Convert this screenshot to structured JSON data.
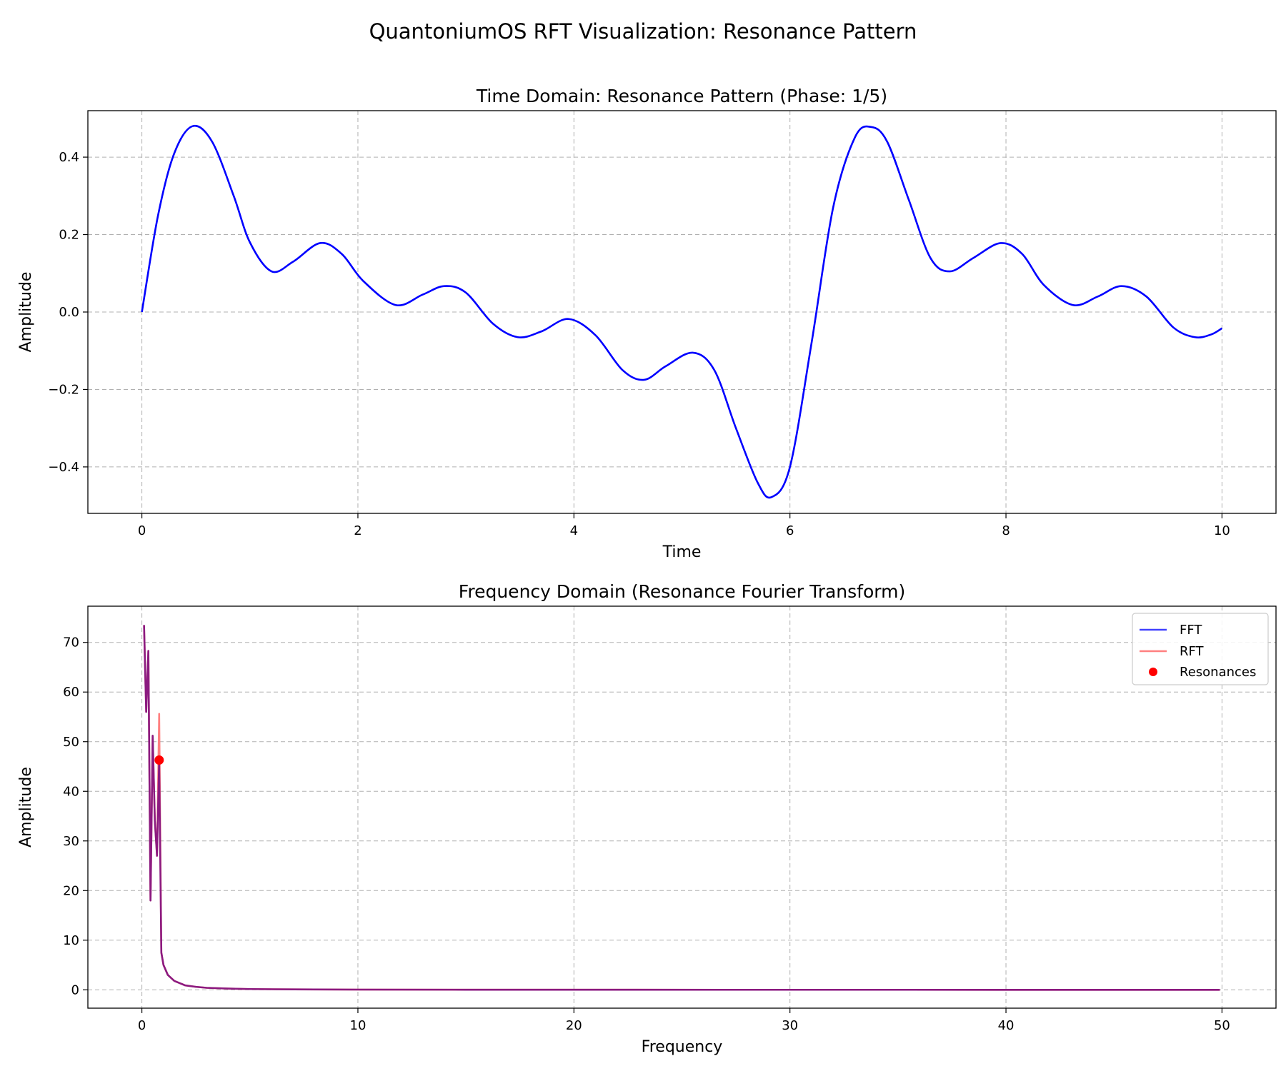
{
  "figure_title": "QuantoniumOS RFT Visualization: Resonance Pattern",
  "colors": {
    "time_line": "#0000ff",
    "fft_line": "#4040ff",
    "rft_line": "#ff8080",
    "overlap_line": "#8b1a80",
    "resonance_marker": "#ff0000",
    "grid": "#b0b0b0"
  },
  "chart_data": [
    {
      "type": "line",
      "title": "Time Domain: Resonance Pattern (Phase: 1/5)",
      "xlabel": "Time",
      "ylabel": "Amplitude",
      "xlim": [
        -0.5,
        10.5
      ],
      "ylim": [
        -0.52,
        0.52
      ],
      "xticks": [
        0,
        2,
        4,
        6,
        8,
        10
      ],
      "yticks": [
        -0.4,
        -0.2,
        0.0,
        0.2,
        0.4
      ],
      "xtick_labels": [
        "0",
        "2",
        "4",
        "6",
        "8",
        "10"
      ],
      "ytick_labels": [
        "−0.4",
        "−0.2",
        "0.0",
        "0.2",
        "0.4"
      ],
      "grid": true,
      "series": [
        {
          "color": "#0000ff",
          "x": [
            0,
            0.15,
            0.3,
            0.47,
            0.65,
            0.85,
            1.0,
            1.2,
            1.4,
            1.65,
            1.85,
            2.05,
            2.35,
            2.6,
            2.8,
            3.0,
            3.25,
            3.48,
            3.7,
            3.95,
            4.2,
            4.45,
            4.65,
            4.85,
            5.1,
            5.3,
            5.5,
            5.7,
            5.83,
            6.0,
            6.2,
            6.4,
            6.6,
            6.75,
            6.9,
            7.1,
            7.3,
            7.48,
            7.7,
            7.95,
            8.15,
            8.35,
            8.62,
            8.85,
            9.07,
            9.3,
            9.55,
            9.75,
            9.9,
            10.0
          ],
          "y": [
            0.0,
            0.25,
            0.41,
            0.48,
            0.44,
            0.3,
            0.18,
            0.105,
            0.13,
            0.178,
            0.15,
            0.08,
            0.018,
            0.045,
            0.067,
            0.05,
            -0.03,
            -0.065,
            -0.05,
            -0.018,
            -0.06,
            -0.15,
            -0.175,
            -0.14,
            -0.105,
            -0.15,
            -0.3,
            -0.44,
            -0.478,
            -0.4,
            -0.08,
            0.27,
            0.45,
            0.478,
            0.44,
            0.29,
            0.14,
            0.105,
            0.14,
            0.178,
            0.15,
            0.07,
            0.018,
            0.04,
            0.067,
            0.04,
            -0.04,
            -0.065,
            -0.058,
            -0.042
          ]
        }
      ]
    },
    {
      "type": "line",
      "title": "Frequency Domain (Resonance Fourier Transform)",
      "xlabel": "Frequency",
      "ylabel": "Amplitude",
      "xlim": [
        -2.5,
        52.5
      ],
      "ylim": [
        -3.7,
        77.3
      ],
      "xticks": [
        0,
        10,
        20,
        30,
        40,
        50
      ],
      "yticks": [
        0,
        10,
        20,
        30,
        40,
        50,
        60,
        70
      ],
      "xtick_labels": [
        "0",
        "10",
        "20",
        "30",
        "40",
        "50"
      ],
      "ytick_labels": [
        "0",
        "10",
        "20",
        "30",
        "40",
        "50",
        "60",
        "70"
      ],
      "grid": true,
      "legend": {
        "position": "upper-right",
        "entries": [
          "FFT",
          "RFT",
          "Resonances"
        ]
      },
      "series": [
        {
          "name": "FFT",
          "color": "#4040ff",
          "x": [
            0.1,
            0.2,
            0.3,
            0.4,
            0.5,
            0.6,
            0.7,
            0.8,
            0.9,
            1.0,
            1.2,
            1.5,
            2.0,
            2.5,
            3.0,
            4.0,
            5.0,
            7.0,
            10.0,
            15.0,
            20.0,
            30.0,
            40.0,
            49.9
          ],
          "y": [
            73.5,
            56.0,
            68.3,
            18.0,
            51.2,
            34.0,
            27.0,
            46.3,
            7.5,
            5.0,
            3.0,
            1.8,
            0.9,
            0.6,
            0.4,
            0.25,
            0.15,
            0.08,
            0.04,
            0.02,
            0.01,
            0.005,
            0.002,
            0.0
          ]
        },
        {
          "name": "RFT",
          "color": "#ff8080",
          "x": [
            0.1,
            0.2,
            0.3,
            0.4,
            0.5,
            0.6,
            0.7,
            0.8,
            0.9,
            1.0,
            1.2,
            1.5,
            2.0,
            2.5,
            3.0,
            4.0,
            5.0,
            7.0,
            10.0,
            15.0,
            20.0,
            30.0,
            40.0,
            49.9
          ],
          "y": [
            73.5,
            56.0,
            68.3,
            18.0,
            51.2,
            34.0,
            27.0,
            55.6,
            7.5,
            5.0,
            3.0,
            1.8,
            0.9,
            0.6,
            0.4,
            0.25,
            0.15,
            0.08,
            0.04,
            0.02,
            0.01,
            0.005,
            0.002,
            0.0
          ]
        },
        {
          "name": "Resonances",
          "color": "#ff0000",
          "marker": "circle",
          "x": [
            0.8
          ],
          "y": [
            46.3
          ]
        }
      ]
    }
  ]
}
